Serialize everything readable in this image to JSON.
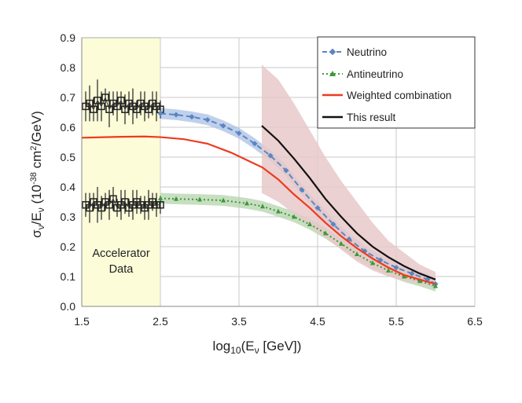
{
  "chart_data": {
    "type": "line",
    "xlabel_main": "log",
    "xlabel_sub": "10",
    "xlabel_rest": "(E",
    "xlabel_nu": "ν",
    "xlabel_end": " [GeV])",
    "ylabel_sigma": "σ",
    "ylabel_nu": "ν",
    "ylabel_mid": "/E",
    "ylabel_unit1": " (10",
    "ylabel_exp": "-38",
    "ylabel_unit2": " cm",
    "ylabel_exp2": "2",
    "ylabel_unit3": "/GeV)",
    "xlim": [
      1.5,
      6.5
    ],
    "ylim": [
      0,
      0.9
    ],
    "xticks": [
      "1.5",
      "2.5",
      "3.5",
      "4.5",
      "5.5",
      "6.5"
    ],
    "xtick_values": [
      1.5,
      2.5,
      3.5,
      4.5,
      5.5,
      6.5
    ],
    "yticks": [
      "0.0",
      "0.1",
      "0.2",
      "0.3",
      "0.4",
      "0.5",
      "0.6",
      "0.7",
      "0.8",
      "0.9"
    ],
    "ytick_values": [
      0,
      0.1,
      0.2,
      0.3,
      0.4,
      0.5,
      0.6,
      0.7,
      0.8,
      0.9
    ],
    "vertical_gridlines": [
      2.5,
      3.5,
      4.5,
      5.5,
      6.5
    ],
    "region": {
      "label_line1": "Accelerator",
      "label_line2": "Data",
      "x_range": [
        1.5,
        2.5
      ],
      "color": "#fcfcd9"
    },
    "series": [
      {
        "name": "Neutrino",
        "color": "#5b85c0",
        "style": "dashed-diamond",
        "x": [
          2.5,
          2.7,
          2.9,
          3.1,
          3.3,
          3.5,
          3.7,
          3.9,
          4.1,
          4.3,
          4.5,
          4.7,
          4.9,
          5.1,
          5.3,
          5.5,
          5.7,
          5.9,
          6.0
        ],
        "values": [
          0.646,
          0.642,
          0.635,
          0.625,
          0.605,
          0.58,
          0.545,
          0.505,
          0.455,
          0.39,
          0.33,
          0.275,
          0.225,
          0.185,
          0.155,
          0.13,
          0.11,
          0.09,
          0.075
        ],
        "band": 0.018
      },
      {
        "name": "Antineutrino",
        "color": "#3a9a3a",
        "style": "dotted-triangle",
        "x": [
          2.5,
          2.7,
          3.0,
          3.3,
          3.6,
          3.8,
          4.0,
          4.2,
          4.4,
          4.6,
          4.8,
          5.0,
          5.2,
          5.4,
          5.6,
          5.8,
          6.0
        ],
        "values": [
          0.362,
          0.36,
          0.358,
          0.355,
          0.345,
          0.335,
          0.318,
          0.3,
          0.275,
          0.245,
          0.21,
          0.175,
          0.145,
          0.12,
          0.1,
          0.085,
          0.068
        ],
        "band": 0.018
      },
      {
        "name": "Weighted combination",
        "color": "#ee3a1f",
        "style": "solid",
        "x": [
          1.5,
          2.0,
          2.3,
          2.5,
          2.8,
          3.1,
          3.4,
          3.6,
          3.8,
          4.0,
          4.2,
          4.4,
          4.6,
          4.8,
          5.0,
          5.2,
          5.4,
          5.6,
          5.8,
          6.0
        ],
        "values": [
          0.565,
          0.568,
          0.569,
          0.567,
          0.56,
          0.545,
          0.515,
          0.49,
          0.465,
          0.425,
          0.375,
          0.33,
          0.28,
          0.235,
          0.195,
          0.16,
          0.13,
          0.105,
          0.09,
          0.075
        ]
      },
      {
        "name": "This result",
        "color": "#111111",
        "style": "solid",
        "x": [
          3.79,
          4.0,
          4.2,
          4.4,
          4.6,
          4.8,
          5.0,
          5.2,
          5.4,
          5.6,
          5.8,
          6.0
        ],
        "values": [
          0.605,
          0.555,
          0.495,
          0.43,
          0.36,
          0.3,
          0.245,
          0.2,
          0.165,
          0.135,
          0.11,
          0.09
        ],
        "band_upper": [
          0.81,
          0.76,
          0.68,
          0.59,
          0.5,
          0.42,
          0.35,
          0.28,
          0.22,
          0.18,
          0.14,
          0.115
        ],
        "band_lower": [
          0.38,
          0.35,
          0.31,
          0.27,
          0.23,
          0.19,
          0.15,
          0.12,
          0.1,
          0.085,
          0.075,
          0.065
        ],
        "band_color": "#e8c9c9"
      }
    ],
    "accelerator_neutrino": {
      "x": [
        1.55,
        1.6,
        1.65,
        1.7,
        1.75,
        1.8,
        1.85,
        1.9,
        1.95,
        2.0,
        2.05,
        2.1,
        2.15,
        2.2,
        2.25,
        2.3,
        2.35,
        2.4,
        2.45,
        2.5
      ],
      "values": [
        0.67,
        0.68,
        0.66,
        0.69,
        0.67,
        0.7,
        0.66,
        0.68,
        0.67,
        0.69,
        0.66,
        0.68,
        0.67,
        0.66,
        0.68,
        0.67,
        0.66,
        0.68,
        0.67,
        0.66
      ],
      "err": [
        0.05,
        0.06,
        0.04,
        0.07,
        0.05,
        0.03,
        0.06,
        0.04,
        0.05,
        0.03,
        0.05,
        0.04,
        0.06,
        0.03,
        0.04,
        0.05,
        0.03,
        0.04,
        0.05,
        0.03
      ]
    },
    "accelerator_antineutrino": {
      "x": [
        1.55,
        1.6,
        1.65,
        1.7,
        1.75,
        1.8,
        1.85,
        1.9,
        1.95,
        2.0,
        2.05,
        2.1,
        2.15,
        2.2,
        2.25,
        2.3,
        2.35,
        2.4,
        2.45,
        2.5
      ],
      "values": [
        0.34,
        0.33,
        0.35,
        0.34,
        0.33,
        0.35,
        0.34,
        0.36,
        0.33,
        0.34,
        0.35,
        0.33,
        0.34,
        0.35,
        0.34,
        0.33,
        0.34,
        0.35,
        0.34,
        0.34
      ],
      "err": [
        0.04,
        0.05,
        0.03,
        0.06,
        0.04,
        0.03,
        0.05,
        0.04,
        0.03,
        0.05,
        0.04,
        0.03,
        0.05,
        0.04,
        0.03,
        0.04,
        0.05,
        0.03,
        0.04,
        0.03
      ]
    },
    "legend": {
      "placement": "top-right",
      "entries": [
        "Neutrino",
        "Antineutrino",
        "Weighted combination",
        "This result"
      ]
    }
  }
}
